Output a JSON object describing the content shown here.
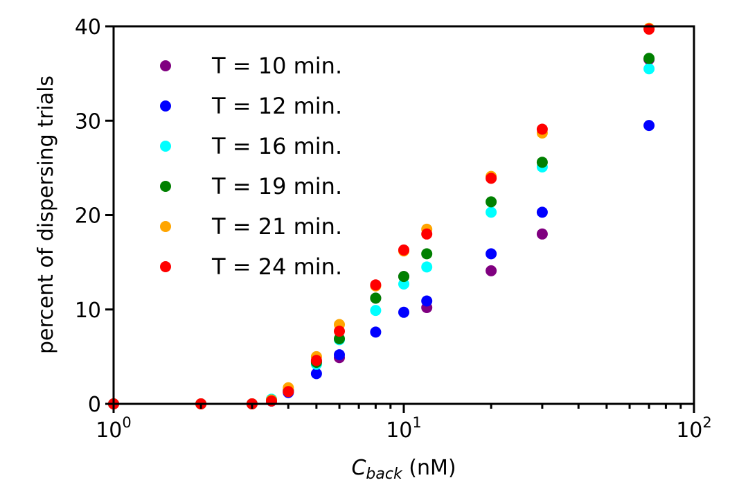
{
  "chart_data": {
    "type": "scatter",
    "title": "",
    "xlabel": {
      "symbol": "C",
      "subscript": "back",
      "unit": " (nM)"
    },
    "ylabel": "percent of dispersing trials",
    "xscale": "log",
    "xlim": [
      1,
      100
    ],
    "ylim": [
      0,
      40
    ],
    "y_ticks": [
      0,
      10,
      20,
      30,
      40
    ],
    "y_tick_labels": [
      "0",
      "10",
      "20",
      "30",
      "40"
    ],
    "x_major_ticks": [
      1,
      10,
      100
    ],
    "x_tick_labels": [
      {
        "base": "10",
        "exp": "0"
      },
      {
        "base": "10",
        "exp": "1"
      },
      {
        "base": "10",
        "exp": "2"
      }
    ],
    "grid": false,
    "legend_position": "upper-left",
    "series": [
      {
        "name": "T = 10 min.",
        "color": "#800080",
        "points": [
          [
            1,
            0
          ],
          [
            2,
            0
          ],
          [
            3,
            0
          ],
          [
            3.5,
            0.3
          ],
          [
            4,
            1.3
          ],
          [
            5,
            4.5
          ],
          [
            6,
            4.9
          ],
          [
            8,
            11.2
          ],
          [
            10,
            13.5
          ],
          [
            12,
            10.2
          ],
          [
            20,
            14.1
          ],
          [
            30,
            18.0
          ],
          [
            70,
            36.5
          ]
        ]
      },
      {
        "name": "T = 12 min.",
        "color": "#0000ff",
        "points": [
          [
            1,
            0
          ],
          [
            2,
            0
          ],
          [
            3,
            0
          ],
          [
            3.5,
            0.3
          ],
          [
            4,
            1.2
          ],
          [
            5,
            3.2
          ],
          [
            6,
            5.2
          ],
          [
            8,
            7.6
          ],
          [
            10,
            9.7
          ],
          [
            12,
            10.9
          ],
          [
            20,
            15.9
          ],
          [
            30,
            20.3
          ],
          [
            70,
            29.5
          ]
        ]
      },
      {
        "name": "T = 16 min.",
        "color": "#00ffff",
        "points": [
          [
            1,
            0
          ],
          [
            2,
            0
          ],
          [
            3,
            0
          ],
          [
            3.5,
            0.5
          ],
          [
            4,
            1.5
          ],
          [
            5,
            4.2
          ],
          [
            6,
            6.8
          ],
          [
            8,
            9.9
          ],
          [
            10,
            12.7
          ],
          [
            12,
            14.5
          ],
          [
            20,
            20.3
          ],
          [
            30,
            25.1
          ],
          [
            70,
            35.5
          ]
        ]
      },
      {
        "name": "T = 19 min.",
        "color": "#008000",
        "points": [
          [
            1,
            0
          ],
          [
            2,
            0
          ],
          [
            3,
            0
          ],
          [
            3.5,
            0.4
          ],
          [
            4,
            1.4
          ],
          [
            5,
            4.4
          ],
          [
            6,
            6.9
          ],
          [
            8,
            11.2
          ],
          [
            10,
            13.5
          ],
          [
            12,
            15.9
          ],
          [
            20,
            21.4
          ],
          [
            30,
            25.6
          ],
          [
            70,
            36.6
          ]
        ]
      },
      {
        "name": "T = 21 min.",
        "color": "#ffa500",
        "points": [
          [
            1,
            0
          ],
          [
            2,
            0
          ],
          [
            3,
            0
          ],
          [
            3.5,
            0.4
          ],
          [
            4,
            1.7
          ],
          [
            5,
            5.0
          ],
          [
            6,
            8.4
          ],
          [
            8,
            12.5
          ],
          [
            10,
            16.2
          ],
          [
            12,
            18.5
          ],
          [
            20,
            24.1
          ],
          [
            30,
            28.7
          ],
          [
            70,
            39.8
          ]
        ]
      },
      {
        "name": "T = 24 min.",
        "color": "#ff0000",
        "points": [
          [
            1,
            0
          ],
          [
            2,
            0
          ],
          [
            3,
            0
          ],
          [
            3.5,
            0.3
          ],
          [
            4,
            1.3
          ],
          [
            5,
            4.6
          ],
          [
            6,
            7.7
          ],
          [
            8,
            12.6
          ],
          [
            10,
            16.3
          ],
          [
            12,
            18.0
          ],
          [
            20,
            23.9
          ],
          [
            30,
            29.1
          ],
          [
            70,
            39.7
          ]
        ]
      }
    ]
  }
}
